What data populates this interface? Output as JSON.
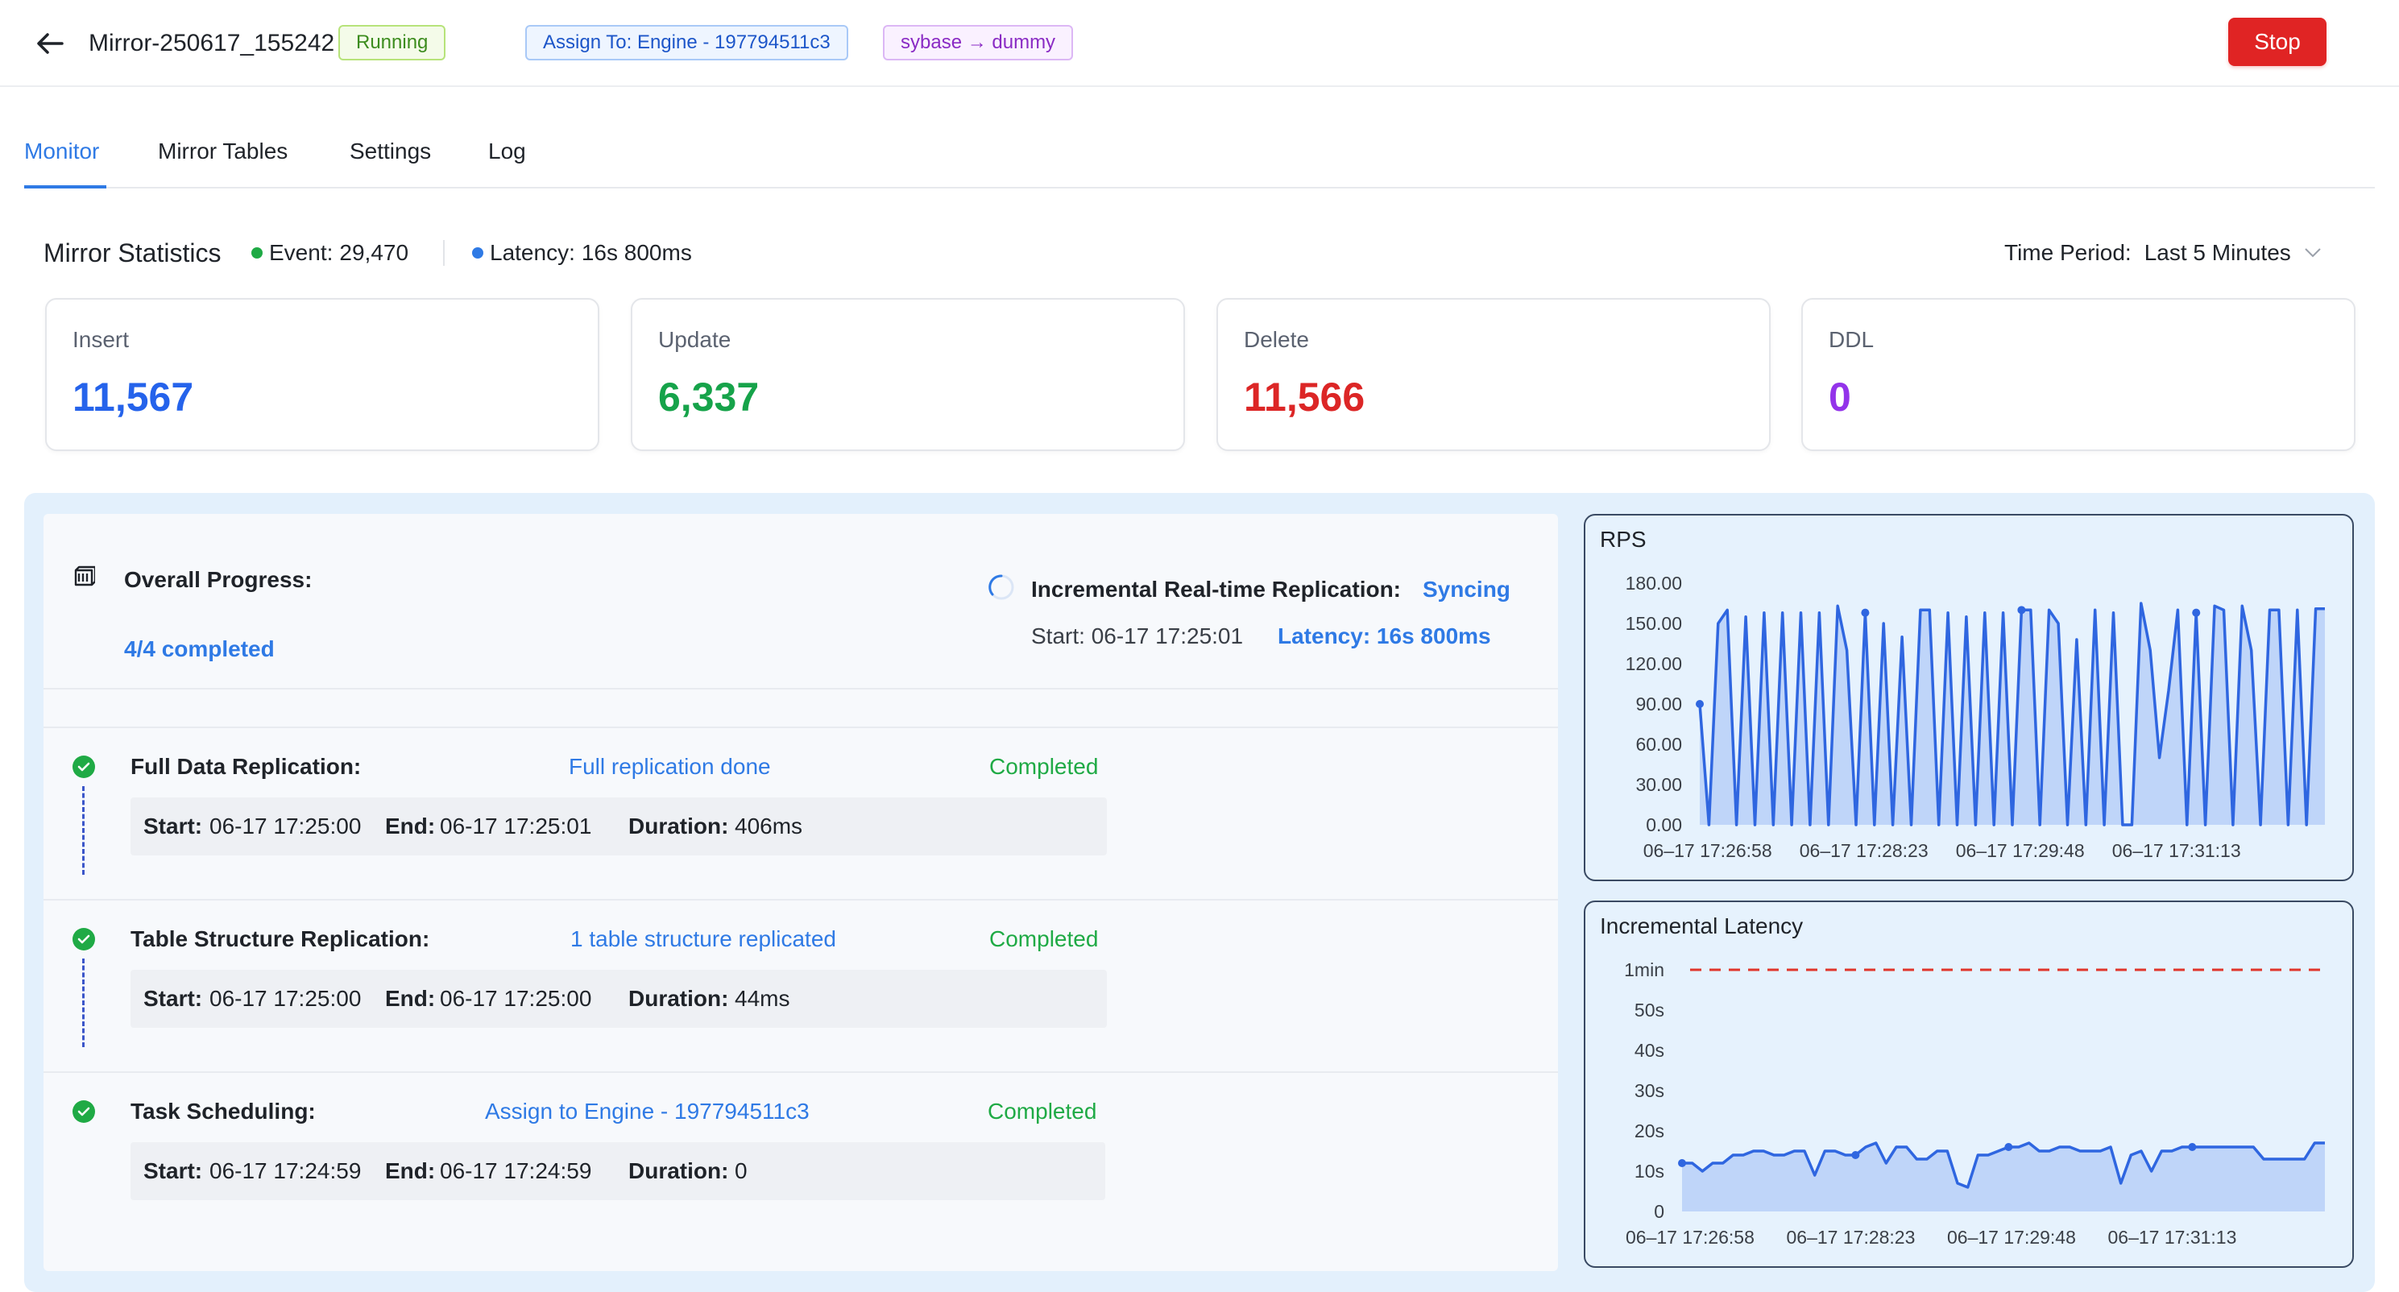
{
  "header": {
    "title": "Mirror-250617_155242",
    "status": "Running",
    "assign": "Assign To: Engine - 197794511c3",
    "route": "sybase → dummy",
    "stop_label": "Stop"
  },
  "tabs": [
    {
      "label": "Monitor"
    },
    {
      "label": "Mirror Tables"
    },
    {
      "label": "Settings"
    },
    {
      "label": "Log"
    }
  ],
  "stats": {
    "title": "Mirror Statistics",
    "event_label": "Event:",
    "event_value": "29,470",
    "latency_label": "Latency:",
    "latency_value": "16s 800ms",
    "time_period_label": "Time Period:",
    "time_period_value": "Last 5 Minutes",
    "cards": [
      {
        "label": "Insert",
        "value": "11,567",
        "color": "#2563eb"
      },
      {
        "label": "Update",
        "value": "6,337",
        "color": "#16a34a"
      },
      {
        "label": "Delete",
        "value": "11,566",
        "color": "#dc2626"
      },
      {
        "label": "DDL",
        "value": "0",
        "color": "#9333ea"
      }
    ]
  },
  "progress": {
    "overall_label": "Overall Progress:",
    "overall_value": "4/4 completed",
    "incremental_label": "Incremental Real-time Replication:",
    "incremental_status": "Syncing",
    "incremental_start": "Start: 06-17 17:25:01",
    "incremental_latency": "Latency: 16s 800ms",
    "steps": [
      {
        "name": "Full Data Replication:",
        "detail": "Full replication done",
        "status": "Completed",
        "start_label": "Start:",
        "start": "06-17 17:25:00",
        "end_label": "End:",
        "end": "06-17 17:25:01",
        "duration_label": "Duration:",
        "duration": "406ms"
      },
      {
        "name": "Table Structure Replication:",
        "detail": "1 table structure replicated",
        "status": "Completed",
        "start_label": "Start:",
        "start": "06-17 17:25:00",
        "end_label": "End:",
        "end": "06-17 17:25:00",
        "duration_label": "Duration:",
        "duration": "44ms"
      },
      {
        "name": "Task Scheduling:",
        "detail": "Assign to Engine - 197794511c3",
        "status": "Completed",
        "start_label": "Start:",
        "start": "06-17 17:24:59",
        "end_label": "End:",
        "end": "06-17 17:24:59",
        "duration_label": "Duration:",
        "duration": "0"
      }
    ]
  },
  "chart_data": [
    {
      "type": "area",
      "title": "RPS",
      "yticks": [
        "0.00",
        "30.00",
        "60.00",
        "90.00",
        "120.00",
        "150.00",
        "180.00"
      ],
      "ylim": [
        0,
        180
      ],
      "xticks": [
        "06–17 17:26:58",
        "06–17 17:28:23",
        "06–17 17:29:48",
        "06–17 17:31:13"
      ],
      "series": [
        {
          "name": "RPS",
          "color": "#2f66e0",
          "values": [
            90,
            0,
            150,
            160,
            0,
            155,
            0,
            158,
            0,
            158,
            0,
            158,
            0,
            158,
            0,
            163,
            130,
            0,
            158,
            0,
            150,
            0,
            140,
            0,
            160,
            160,
            0,
            158,
            0,
            155,
            0,
            158,
            0,
            158,
            0,
            160,
            160,
            0,
            160,
            150,
            0,
            138,
            0,
            160,
            0,
            158,
            0,
            0,
            165,
            130,
            50,
            100,
            160,
            0,
            158,
            0,
            163,
            160,
            0,
            163,
            130,
            0,
            160,
            160,
            0,
            160,
            0,
            161,
            161
          ]
        }
      ]
    },
    {
      "type": "area",
      "title": "Incremental Latency",
      "yticks": [
        "0",
        "10s",
        "20s",
        "30s",
        "40s",
        "50s",
        "1min"
      ],
      "ylim": [
        0,
        60
      ],
      "threshold": 60,
      "xticks": [
        "06–17 17:26:58",
        "06–17 17:28:23",
        "06–17 17:29:48",
        "06–17 17:31:13"
      ],
      "series": [
        {
          "name": "Latency",
          "color": "#2f66e0",
          "values": [
            12,
            12,
            10,
            12,
            12,
            14,
            14,
            15,
            15,
            14,
            14,
            15,
            15,
            9,
            15,
            15,
            14,
            14,
            16,
            17,
            12,
            16,
            16,
            13,
            13,
            15,
            15,
            7,
            6,
            14,
            14,
            15,
            16,
            16,
            17,
            15,
            15,
            16,
            16,
            15,
            15,
            15,
            16,
            7,
            14,
            15,
            10,
            15,
            15,
            16,
            16,
            16,
            16,
            16,
            16,
            16,
            16,
            13,
            13,
            13,
            13,
            13,
            17,
            17
          ]
        }
      ]
    }
  ]
}
